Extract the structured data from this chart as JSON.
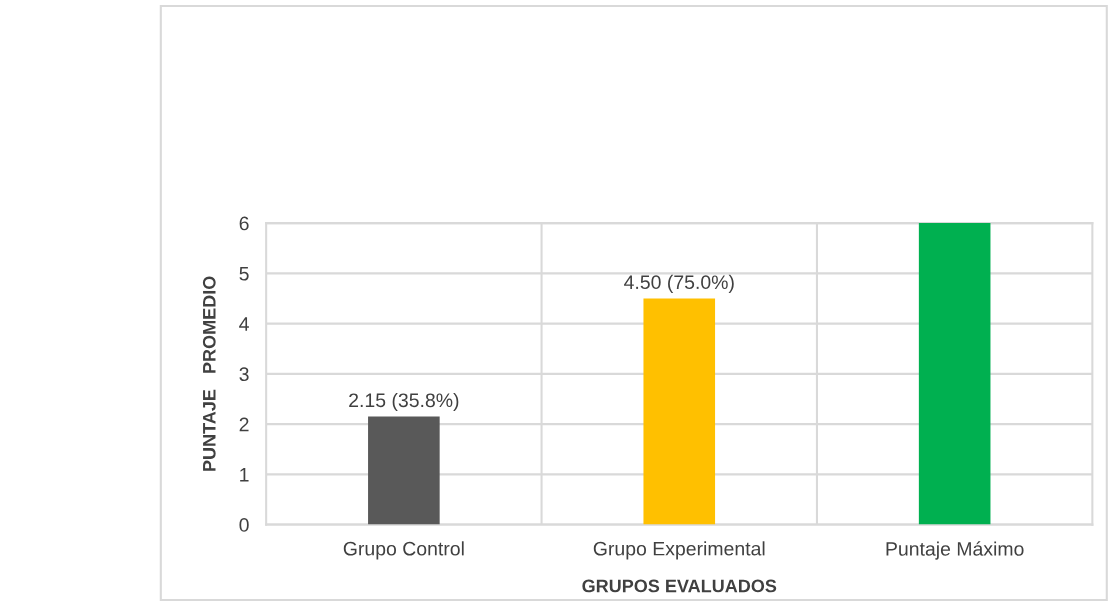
{
  "chart_data": {
    "type": "bar",
    "xlabel": "GRUPOS EVALUADOS",
    "ylabel": "PUNTAJE   PROMEDIO",
    "categories": [
      "Grupo Control",
      "Grupo Experimental",
      "Puntaje Máximo"
    ],
    "values": [
      2.15,
      4.5,
      6
    ],
    "colors": [
      "#595959",
      "#ffc000",
      "#00b050"
    ],
    "value_labels": [
      "2.15 (35.8%)",
      "4.50 (75.0%)",
      null
    ],
    "ylim": [
      0,
      6
    ],
    "yticks": [
      0,
      1,
      2,
      3,
      4,
      5,
      6
    ],
    "grid": true,
    "legend": false
  }
}
